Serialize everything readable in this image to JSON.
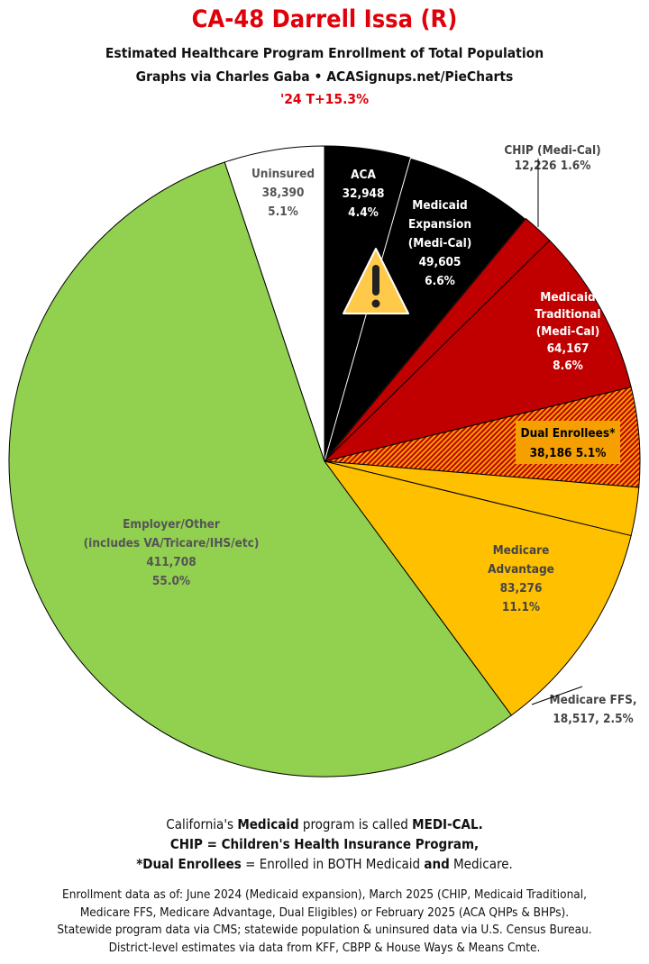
{
  "header": {
    "title": "CA-48 Darrell Issa (R)",
    "subtitle": "Estimated Healthcare Program Enrollment of Total Population",
    "credit": "Graphs via Charles Gaba  •  ACASignups.net/PieCharts",
    "change": "'24 T+15.3%"
  },
  "chart_data": {
    "type": "pie",
    "start": "12 o'clock, clockwise",
    "slices": [
      {
        "name": "ACA",
        "value": 32948,
        "percent": 4.4,
        "color": "#000000",
        "labels": [
          "ACA",
          "32,948",
          "4.4%"
        ]
      },
      {
        "name": "Medicaid Expansion (Medi-Cal)",
        "value": 49605,
        "percent": 6.6,
        "color": "#000000",
        "labels": [
          "Medicaid",
          "Expansion",
          "(Medi-Cal)",
          "49,605",
          "6.6%"
        ]
      },
      {
        "name": "CHIP (Medi-Cal)",
        "value": 12226,
        "percent": 1.6,
        "color": "#c00000",
        "labels": [
          "CHIP (Medi-Cal)",
          "12,226 1.6%"
        ]
      },
      {
        "name": "Medicaid Traditional (Medi-Cal)",
        "value": 64167,
        "percent": 8.6,
        "color": "#c00000",
        "labels": [
          "Medicaid",
          "Traditional",
          "(Medi-Cal)",
          "64,167",
          "8.6%"
        ]
      },
      {
        "name": "Dual Enrollees*",
        "value": 38186,
        "percent": 5.1,
        "color": "#f5a000",
        "pattern": "hatched red/orange",
        "labels": [
          "Dual Enrollees*",
          "38,186 5.1%"
        ]
      },
      {
        "name": "Medicare FFS",
        "value": 18517,
        "percent": 2.5,
        "color": "#ffc000",
        "labels": [
          "Medicare FFS,",
          "18,517, 2.5%"
        ]
      },
      {
        "name": "Medicare Advantage",
        "value": 83276,
        "percent": 11.1,
        "color": "#ffc000",
        "labels": [
          "Medicare",
          "Advantage",
          "83,276",
          "11.1%"
        ]
      },
      {
        "name": "Employer/Other (includes VA/Tricare/IHS/etc)",
        "value": 411708,
        "percent": 55.0,
        "color": "#92d050",
        "labels": [
          "Employer/Other",
          "(includes VA/Tricare/IHS/etc)",
          "411,708",
          "55.0%"
        ]
      },
      {
        "name": "Uninsured",
        "value": 38390,
        "percent": 5.1,
        "color": "#ffffff",
        "labels": [
          "Uninsured",
          "38,390",
          "5.1%"
        ]
      }
    ],
    "icon": "warning-icon"
  },
  "notes": {
    "line1": [
      "California's ",
      "Medicaid",
      " program is called ",
      "MEDI-CAL."
    ],
    "line2": "CHIP = Children's Health Insurance Program,",
    "line3": [
      "*Dual Enrollees",
      " = Enrolled in BOTH Medicaid ",
      "and",
      " Medicare."
    ]
  },
  "footnotes": [
    "Enrollment data as of: June 2024 (Medicaid expansion), March 2025 (CHIP, Medicaid Traditional,",
    "Medicare FFS, Medicare Advantage, Dual Eligibles) or February 2025 (ACA QHPs & BHPs).",
    "Statewide program data via CMS; statewide population & uninsured data via U.S. Census Bureau.",
    "District-level estimates via data from KFF, CBPP & House Ways & Means Cmte."
  ]
}
